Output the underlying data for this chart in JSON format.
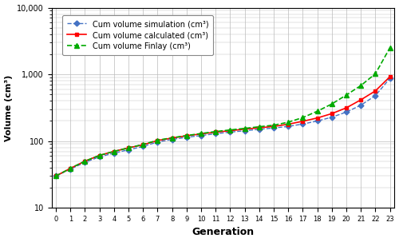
{
  "generations": [
    0,
    1,
    2,
    3,
    4,
    5,
    6,
    7,
    8,
    9,
    10,
    11,
    12,
    13,
    14,
    15,
    16,
    17,
    18,
    19,
    20,
    21,
    22,
    23
  ],
  "sim": [
    30,
    38,
    48,
    58,
    66,
    74,
    83,
    97,
    106,
    114,
    121,
    129,
    136,
    143,
    150,
    157,
    166,
    180,
    200,
    228,
    272,
    345,
    480,
    870
  ],
  "calc": [
    30,
    39,
    50,
    61,
    70,
    79,
    88,
    102,
    111,
    120,
    128,
    136,
    143,
    151,
    158,
    166,
    179,
    198,
    222,
    258,
    315,
    415,
    565,
    920
  ],
  "finlay": [
    30,
    39,
    50,
    61,
    70,
    79,
    89,
    103,
    112,
    121,
    130,
    139,
    147,
    155,
    164,
    173,
    192,
    225,
    280,
    360,
    490,
    680,
    1020,
    2500
  ],
  "sim_color": "#4472C4",
  "calc_color": "#FF0000",
  "finlay_color": "#00AA00",
  "sim_label": "Cum volume simulation (cm³)",
  "calc_label": "Cum volume calculated (cm³)",
  "finlay_label": "Cum volume Finlay (cm³)",
  "xlabel": "Generation",
  "ylabel": "Volume (cm³)",
  "ylim_min": 10,
  "ylim_max": 10000,
  "xlim_min": -0.3,
  "xlim_max": 23.3,
  "bg_color": "#FFFFFF",
  "grid_color": "#BBBBBB"
}
